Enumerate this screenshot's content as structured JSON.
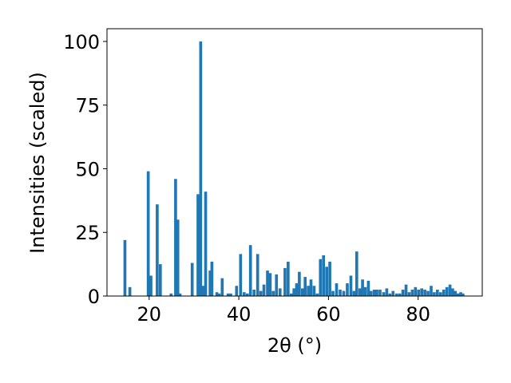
{
  "chart_data": {
    "type": "bar",
    "title": "",
    "xlabel": "2θ (°)",
    "ylabel": "Intensities (scaled)",
    "xlim": [
      10.6,
      94.3
    ],
    "ylim": [
      0,
      105
    ],
    "xticks": [
      20,
      40,
      60,
      80
    ],
    "yticks": [
      0,
      25,
      50,
      75,
      100
    ],
    "bar_width": 0.65,
    "bar_color": "#1f77b4",
    "grid": false,
    "series": [
      {
        "x": [
          14.6,
          15.7,
          19.8,
          20.4,
          21.8,
          22.5,
          24.9,
          25.9,
          26.4,
          26.9,
          29.6,
          30.9,
          31.5,
          32.0,
          32.6,
          33.6,
          34.0,
          35.1,
          35.6,
          36.3,
          37.6,
          38.2,
          39.5,
          40.4,
          41.2,
          41.9,
          42.6,
          43.4,
          44.2,
          44.9,
          45.6,
          46.4,
          47.0,
          47.7,
          48.4,
          49.2,
          50.3,
          51.0,
          51.7,
          52.3,
          52.9,
          53.5,
          54.2,
          54.8,
          55.5,
          56.1,
          56.8,
          57.5,
          58.2,
          58.9,
          59.6,
          60.3,
          61.0,
          61.8,
          62.6,
          63.4,
          64.2,
          65.0,
          65.7,
          66.3,
          67.0,
          67.6,
          68.2,
          68.9,
          69.5,
          70.2,
          70.8,
          71.5,
          72.3,
          73.0,
          73.7,
          74.4,
          75.2,
          75.9,
          76.6,
          77.3,
          78.0,
          78.7,
          79.4,
          80.1,
          80.8,
          81.5,
          82.2,
          82.9,
          83.6,
          84.3,
          85.0,
          85.7,
          86.4,
          87.1,
          87.7,
          88.3,
          88.9,
          89.5,
          90.0
        ],
        "values": [
          22,
          3.5,
          49,
          8,
          36,
          12.5,
          1,
          46,
          30,
          1,
          13,
          40,
          100,
          4,
          41,
          10,
          13.5,
          1.5,
          1,
          7,
          1,
          1,
          4,
          16.5,
          1.5,
          1,
          20,
          2.5,
          16.5,
          2,
          4.5,
          10,
          9,
          2,
          8.5,
          3,
          11,
          13.5,
          1,
          3,
          5,
          9.5,
          3,
          7.5,
          4,
          6.5,
          4,
          1,
          14.5,
          16,
          11.5,
          13.5,
          2,
          5,
          2.5,
          2,
          5,
          8,
          2,
          17.5,
          3,
          6.5,
          3.5,
          6,
          2,
          2.5,
          2.5,
          2.5,
          1.5,
          3,
          1,
          2,
          1,
          1,
          2.5,
          4.5,
          1.5,
          2.5,
          3.5,
          2.5,
          3,
          2.5,
          2,
          4,
          1.5,
          2.5,
          1.5,
          2.5,
          3.5,
          4.5,
          3,
          2,
          1,
          1.5,
          1
        ]
      }
    ]
  }
}
